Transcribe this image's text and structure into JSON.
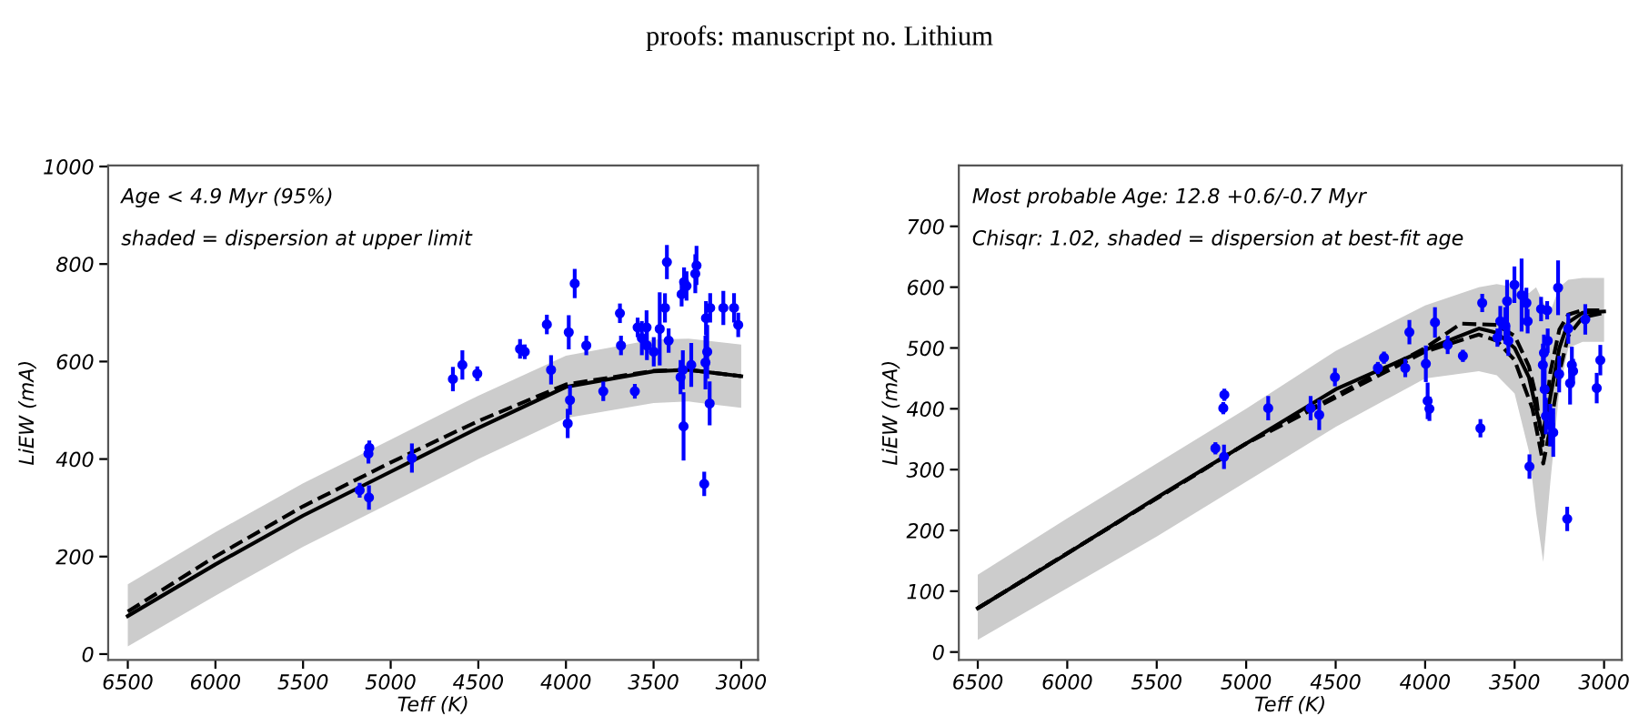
{
  "chart_data": [
    {
      "type": "scatter",
      "title": "proofs: manuscript no. Lithium",
      "xlabel": "Teff (K)",
      "ylabel": "LiEW (mA)",
      "xlim": [
        6612,
        2904
      ],
      "ylim": [
        -12,
        1002
      ],
      "xticks": [
        6500,
        6000,
        5500,
        5000,
        4500,
        4000,
        3500,
        3000
      ],
      "yticks": [
        0,
        200,
        400,
        600,
        800,
        1000
      ],
      "grid": false,
      "annotations": [
        "Age < 4.9 Myr (95%)",
        "shaded = dispersion at upper limit"
      ],
      "series": [
        {
          "type": "line",
          "line_style": "solid",
          "color": "#000000",
          "x": [
            6500,
            6000,
            5500,
            5000,
            4500,
            4000,
            3500,
            3300,
            3000
          ],
          "values": [
            78,
            184,
            284,
            374,
            464,
            548,
            580,
            583,
            570
          ],
          "lower": [
            16,
            120,
            220,
            310,
            400,
            484,
            515,
            518,
            505
          ],
          "upper": [
            143,
            250,
            350,
            440,
            530,
            612,
            645,
            647,
            635
          ]
        },
        {
          "type": "line",
          "line_style": "dashed",
          "color": "#000000",
          "x": [
            6500,
            6000,
            5500,
            5000,
            4500,
            4000,
            3500,
            3300,
            3000
          ],
          "values": [
            87,
            200,
            303,
            393,
            478,
            553,
            581,
            583,
            570
          ]
        },
        {
          "marker": "circle",
          "color": "#0000ff",
          "x": [
            5177,
            5127,
            5122,
            5124,
            4879,
            4645,
            4591,
            4506,
            4262,
            4235,
            4109,
            4085,
            3990,
            3984,
            3977,
            3950,
            3884,
            3787,
            3692,
            3686,
            3607,
            3591,
            3567,
            3540,
            3538,
            3499,
            3465,
            3435,
            3424,
            3414,
            3346,
            3340,
            3333,
            3329,
            3326,
            3312,
            3285,
            3262,
            3255,
            3211,
            3204,
            3201,
            3194,
            3180,
            3177,
            3102,
            3041,
            3017
          ],
          "values": [
            336,
            411,
            423,
            321,
            402,
            564,
            593,
            575,
            626,
            620,
            676,
            583,
            473,
            660,
            521,
            760,
            633,
            539,
            699,
            633,
            539,
            670,
            648,
            670,
            633,
            620,
            667,
            710,
            804,
            643,
            568,
            738,
            583,
            467,
            763,
            755,
            593,
            780,
            797,
            349,
            598,
            689,
            620,
            514,
            710,
            710,
            710,
            675
          ],
          "errors": [
            15,
            20,
            15,
            25,
            30,
            25,
            30,
            15,
            20,
            15,
            20,
            30,
            30,
            35,
            30,
            30,
            20,
            20,
            20,
            20,
            15,
            20,
            35,
            35,
            30,
            30,
            75,
            30,
            35,
            25,
            35,
            25,
            40,
            70,
            30,
            30,
            45,
            40,
            40,
            25,
            55,
            35,
            55,
            45,
            30,
            35,
            30,
            25
          ]
        }
      ]
    },
    {
      "type": "scatter",
      "xlabel": "Teff (K)",
      "ylabel": "LiEW (mA)",
      "xlim": [
        6606,
        2901
      ],
      "ylim": [
        -13,
        800
      ],
      "xticks": [
        6500,
        6000,
        5500,
        5000,
        4500,
        4000,
        3500,
        3000
      ],
      "yticks": [
        0,
        100,
        200,
        300,
        400,
        500,
        600,
        700
      ],
      "grid": false,
      "annotations": [
        "Most probable Age: 12.8 +0.6/-0.7 Myr",
        "Chisqr: 1.02, shaded = dispersion at best-fit age"
      ],
      "series": [
        {
          "type": "line",
          "line_style": "solid",
          "color": "#000000",
          "x": [
            6500,
            6000,
            5500,
            5000,
            4500,
            4000,
            3700,
            3600,
            3500,
            3420,
            3380,
            3340,
            3300,
            3250,
            3200,
            3120,
            3000
          ],
          "values": [
            72,
            162,
            254,
            343,
            432,
            497,
            532,
            525,
            500,
            452,
            400,
            353,
            420,
            500,
            542,
            558,
            560
          ],
          "lower": [
            20,
            105,
            190,
            280,
            370,
            450,
            462,
            455,
            425,
            330,
            230,
            148,
            280,
            430,
            500,
            510,
            510
          ],
          "upper": [
            127,
            220,
            310,
            400,
            495,
            570,
            600,
            605,
            600,
            590,
            600,
            575,
            560,
            600,
            612,
            615,
            615
          ]
        },
        {
          "type": "line",
          "line_style": "dashed",
          "color": "#000000",
          "x": [
            6500,
            5000,
            4000,
            3800,
            3600,
            3500,
            3420,
            3380,
            3345,
            3300,
            3250,
            3200,
            3120,
            3000
          ],
          "values": [
            72,
            343,
            500,
            540,
            538,
            520,
            470,
            420,
            340,
            460,
            530,
            555,
            562,
            562
          ]
        },
        {
          "type": "line",
          "line_style": "dashed",
          "color": "#000000",
          "x": [
            6500,
            5000,
            4000,
            3700,
            3600,
            3500,
            3400,
            3340,
            3300,
            3250,
            3200,
            3120,
            3000
          ],
          "values": [
            72,
            343,
            494,
            522,
            512,
            480,
            400,
            310,
            370,
            460,
            520,
            550,
            558
          ]
        },
        {
          "marker": "circle",
          "color": "#0000ff",
          "x": [
            5172,
            5128,
            5122,
            5124,
            4877,
            4640,
            4592,
            4504,
            4264,
            4230,
            4111,
            4088,
            3996,
            3986,
            3976,
            3945,
            3874,
            3789,
            3691,
            3681,
            3596,
            3580,
            3552,
            3542,
            3535,
            3501,
            3461,
            3434,
            3427,
            3417,
            3352,
            3342,
            3336,
            3332,
            3325,
            3318,
            3315,
            3301,
            3284,
            3257,
            3251,
            3206,
            3200,
            3190,
            3180,
            3173,
            3105,
            3041,
            3021
          ],
          "values": [
            335,
            401,
            423,
            321,
            401,
            401,
            390,
            452,
            467,
            484,
            467,
            526,
            474,
            413,
            400,
            542,
            505,
            487,
            368,
            574,
            517,
            544,
            537,
            577,
            512,
            604,
            587,
            574,
            544,
            305,
            564,
            472,
            492,
            432,
            388,
            562,
            512,
            373,
            361,
            599,
            457,
            219,
            532,
            442,
            472,
            462,
            547,
            434,
            480
          ],
          "errors": [
            10,
            10,
            10,
            20,
            20,
            20,
            25,
            15,
            10,
            10,
            15,
            20,
            30,
            30,
            20,
            25,
            15,
            10,
            15,
            15,
            15,
            25,
            30,
            35,
            25,
            30,
            60,
            25,
            20,
            20,
            20,
            35,
            30,
            40,
            30,
            15,
            20,
            35,
            40,
            45,
            30,
            20,
            25,
            35,
            30,
            20,
            25,
            25,
            25
          ]
        }
      ]
    }
  ]
}
